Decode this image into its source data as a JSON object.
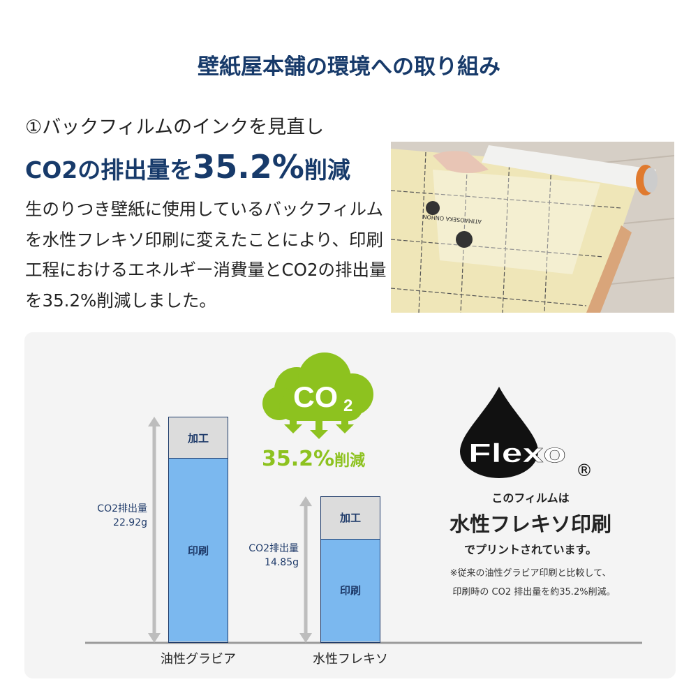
{
  "title": "壁紙屋本舗の環境への取り組み",
  "subtitle": "①バックフィルムのインクを見直し",
  "headline": {
    "pre": "CO2の排出量を",
    "big": "35.2%",
    "post": "削減"
  },
  "body": "生のりつき壁紙に使用しているバックフィルムを水性フレキソ印刷に変えたことにより、印刷工程におけるエネルギー消費量とCO2の排出量を35.2%削減しました。",
  "photo_print": "ATIMAOSEKA ONHON",
  "cloud": {
    "label": "CO",
    "sub": "2",
    "reduction": "35.2%",
    "reduction_suffix": "削減"
  },
  "chart_data": {
    "type": "bar",
    "stacked": true,
    "categories": [
      "油性グラビア",
      "水性フレキソ"
    ],
    "totals": [
      22.92,
      14.85
    ],
    "total_labels": [
      "CO2排出量\n22.92g",
      "CO2排出量\n14.85g"
    ],
    "total_label_title": "CO2排出量",
    "total_label_values": [
      "22.92g",
      "14.85g"
    ],
    "series": [
      {
        "name": "印刷",
        "values": [
          18.7,
          10.6
        ]
      },
      {
        "name": "加工",
        "values": [
          4.2,
          4.3
        ]
      }
    ],
    "colors": {
      "印刷": "#7bb8ef",
      "加工": "#dcdcdc"
    },
    "unit": "g",
    "ylim": [
      0,
      22.92
    ]
  },
  "flexo": {
    "logo": "Flexo",
    "registered": "®",
    "line1": "このフィルムは",
    "line2": "水性フレキソ印刷",
    "line3": "でプリントされています。",
    "note1": "※従来の油性グラビア印刷と比較して、",
    "note2": "印刷時の CO2 排出量を約35.2%削減。"
  },
  "colors": {
    "navy": "#173a6a",
    "green": "#8dc21f",
    "bar_blue": "#7bb8ef",
    "panel": "#f4f4f4"
  }
}
